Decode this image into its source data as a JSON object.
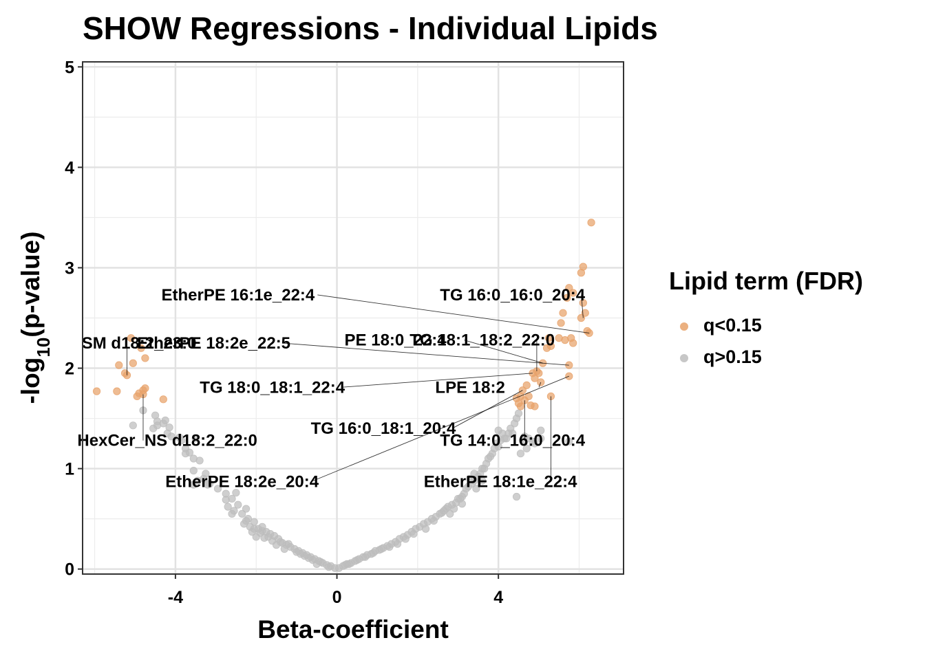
{
  "title": "SHOW Regressions - Individual Lipids",
  "legend": {
    "title": "Lipid term (FDR)",
    "items": [
      {
        "label": "q<0.15",
        "color": "#E8A26A"
      },
      {
        "label": "q>0.15",
        "color": "#BDBDBD"
      }
    ]
  },
  "chart_data": {
    "type": "scatter",
    "title": "SHOW Regressions - Individual Lipids",
    "xlabel": "Beta-coefficient",
    "ylabel_main": "-log",
    "ylabel_sub": "10",
    "ylabel_tail": "(p-value)",
    "xlim": [
      -6.3,
      7.1
    ],
    "ylim": [
      -0.05,
      5.05
    ],
    "x_ticks": [
      -4,
      0,
      4
    ],
    "x_tick_labels": [
      "-4",
      "0",
      "4"
    ],
    "y_ticks": [
      0,
      1,
      2,
      3,
      4,
      5
    ],
    "y_tick_labels": [
      "0",
      "1",
      "2",
      "3",
      "4",
      "5"
    ],
    "grid": true,
    "legend_position": "right",
    "series": [
      {
        "name": "q<0.15",
        "color": "#E8A26A",
        "points": [
          [
            6.3,
            3.45
          ],
          [
            6.1,
            3.01
          ],
          [
            6.05,
            2.95
          ],
          [
            5.75,
            2.8
          ],
          [
            5.85,
            2.75
          ],
          [
            5.7,
            2.7
          ],
          [
            6.1,
            2.65
          ],
          [
            6.15,
            2.55
          ],
          [
            5.6,
            2.55
          ],
          [
            6.05,
            2.5
          ],
          [
            5.55,
            2.45
          ],
          [
            6.2,
            2.37
          ],
          [
            6.25,
            2.35
          ],
          [
            5.8,
            2.3
          ],
          [
            5.5,
            2.3
          ],
          [
            5.65,
            2.28
          ],
          [
            5.85,
            2.25
          ],
          [
            5.25,
            2.3
          ],
          [
            5.3,
            2.22
          ],
          [
            5.2,
            2.2
          ],
          [
            5.1,
            2.05
          ],
          [
            5.75,
            2.03
          ],
          [
            4.95,
            1.97
          ],
          [
            5.0,
            1.95
          ],
          [
            4.85,
            1.95
          ],
          [
            5.75,
            1.92
          ],
          [
            4.9,
            1.9
          ],
          [
            5.05,
            1.86
          ],
          [
            4.7,
            1.83
          ],
          [
            4.6,
            1.78
          ],
          [
            4.55,
            1.72
          ],
          [
            4.75,
            1.72
          ],
          [
            4.45,
            1.7
          ],
          [
            4.65,
            1.68
          ],
          [
            4.5,
            1.65
          ],
          [
            4.8,
            1.63
          ],
          [
            4.55,
            1.62
          ],
          [
            4.9,
            1.62
          ],
          [
            5.3,
            1.72
          ],
          [
            -5.1,
            2.3
          ],
          [
            -4.85,
            2.2
          ],
          [
            -4.75,
            2.1
          ],
          [
            -5.05,
            2.05
          ],
          [
            -5.4,
            2.03
          ],
          [
            -5.25,
            1.95
          ],
          [
            -5.2,
            1.93
          ],
          [
            -4.75,
            1.8
          ],
          [
            -4.8,
            1.78
          ],
          [
            -4.9,
            1.75
          ],
          [
            -5.45,
            1.77
          ],
          [
            -5.95,
            1.77
          ],
          [
            -4.8,
            1.74
          ],
          [
            -4.95,
            1.72
          ],
          [
            -4.3,
            1.69
          ]
        ]
      },
      {
        "name": "q>0.15",
        "color": "#BDBDBD",
        "points": [
          [
            -4.8,
            1.58
          ],
          [
            -4.5,
            1.53
          ],
          [
            -4.45,
            1.47
          ],
          [
            -4.25,
            1.48
          ],
          [
            -4.3,
            1.45
          ],
          [
            -4.45,
            1.43
          ],
          [
            -4.15,
            1.41
          ],
          [
            -4.1,
            1.32
          ],
          [
            -4.2,
            1.35
          ],
          [
            -4.55,
            1.4
          ],
          [
            -5.05,
            1.43
          ],
          [
            -3.9,
            1.31
          ],
          [
            -3.85,
            1.28
          ],
          [
            -3.75,
            1.2
          ],
          [
            -3.5,
            1.3
          ],
          [
            -3.65,
            1.16
          ],
          [
            -3.55,
            1.1
          ],
          [
            -3.4,
            1.08
          ],
          [
            -3.55,
            0.98
          ],
          [
            -3.75,
            1.15
          ],
          [
            -3.45,
            0.88
          ],
          [
            -3.3,
            0.9
          ],
          [
            -3.15,
            0.85
          ],
          [
            -3.25,
            0.95
          ],
          [
            -3.55,
            0.84
          ],
          [
            -3.2,
            0.84
          ],
          [
            -2.95,
            0.8
          ],
          [
            -2.75,
            0.75
          ],
          [
            -2.5,
            0.76
          ],
          [
            -2.6,
            0.7
          ],
          [
            -2.75,
            0.69
          ],
          [
            -2.7,
            0.62
          ],
          [
            -2.45,
            0.64
          ],
          [
            -2.6,
            0.55
          ],
          [
            -2.35,
            0.55
          ],
          [
            -2.25,
            0.6
          ],
          [
            -2.2,
            0.5
          ],
          [
            -2.3,
            0.45
          ],
          [
            -2.15,
            0.42
          ],
          [
            -2.05,
            0.4
          ],
          [
            -1.95,
            0.4
          ],
          [
            -1.85,
            0.38
          ],
          [
            -1.75,
            0.37
          ],
          [
            -1.65,
            0.35
          ],
          [
            -1.55,
            0.33
          ],
          [
            -1.45,
            0.3
          ],
          [
            -1.35,
            0.26
          ],
          [
            -1.25,
            0.24
          ],
          [
            -1.15,
            0.22
          ],
          [
            -1.05,
            0.2
          ],
          [
            -0.95,
            0.18
          ],
          [
            -0.85,
            0.16
          ],
          [
            -0.75,
            0.14
          ],
          [
            -0.65,
            0.12
          ],
          [
            -0.55,
            0.1
          ],
          [
            -0.45,
            0.08
          ],
          [
            -0.35,
            0.06
          ],
          [
            -0.25,
            0.04
          ],
          [
            -0.15,
            0.03
          ],
          [
            -0.05,
            0.01
          ],
          [
            -1.9,
            0.36
          ],
          [
            -1.7,
            0.32
          ],
          [
            -1.6,
            0.28
          ],
          [
            -1.4,
            0.27
          ],
          [
            -1.2,
            0.25
          ],
          [
            -1.0,
            0.17
          ],
          [
            -0.8,
            0.13
          ],
          [
            -0.6,
            0.09
          ],
          [
            -0.4,
            0.07
          ],
          [
            -0.2,
            0.02
          ],
          [
            -2.1,
            0.37
          ],
          [
            -1.8,
            0.31
          ],
          [
            -2.05,
            0.47
          ],
          [
            -2.25,
            0.48
          ],
          [
            -1.5,
            0.24
          ],
          [
            -1.3,
            0.2
          ],
          [
            -0.9,
            0.15
          ],
          [
            -0.7,
            0.11
          ],
          [
            -0.5,
            0.05
          ],
          [
            -2.55,
            0.58
          ],
          [
            -2.0,
            0.32
          ],
          [
            -1.85,
            0.42
          ],
          [
            0.05,
            0.01
          ],
          [
            0.15,
            0.03
          ],
          [
            0.25,
            0.05
          ],
          [
            0.35,
            0.06
          ],
          [
            0.45,
            0.08
          ],
          [
            0.55,
            0.1
          ],
          [
            0.65,
            0.12
          ],
          [
            0.75,
            0.14
          ],
          [
            0.85,
            0.15
          ],
          [
            0.95,
            0.18
          ],
          [
            1.05,
            0.19
          ],
          [
            1.15,
            0.21
          ],
          [
            1.25,
            0.23
          ],
          [
            1.35,
            0.25
          ],
          [
            1.45,
            0.27
          ],
          [
            1.55,
            0.3
          ],
          [
            1.65,
            0.32
          ],
          [
            1.75,
            0.34
          ],
          [
            1.85,
            0.37
          ],
          [
            1.95,
            0.4
          ],
          [
            2.05,
            0.42
          ],
          [
            2.15,
            0.45
          ],
          [
            2.25,
            0.47
          ],
          [
            2.35,
            0.5
          ],
          [
            2.45,
            0.52
          ],
          [
            2.55,
            0.55
          ],
          [
            2.6,
            0.56
          ],
          [
            2.7,
            0.6
          ],
          [
            2.75,
            0.62
          ],
          [
            2.85,
            0.64
          ],
          [
            2.95,
            0.66
          ],
          [
            3.05,
            0.7
          ],
          [
            3.1,
            0.72
          ],
          [
            3.15,
            0.75
          ],
          [
            3.2,
            0.8
          ],
          [
            3.25,
            0.82
          ],
          [
            3.35,
            0.85
          ],
          [
            3.4,
            0.88
          ],
          [
            3.5,
            0.92
          ],
          [
            3.55,
            0.95
          ],
          [
            3.65,
            1.0
          ],
          [
            3.7,
            1.05
          ],
          [
            3.75,
            1.1
          ],
          [
            3.85,
            1.15
          ],
          [
            3.9,
            1.2
          ],
          [
            3.95,
            1.25
          ],
          [
            4.05,
            1.28
          ],
          [
            4.15,
            1.3
          ],
          [
            4.25,
            1.35
          ],
          [
            4.3,
            1.4
          ],
          [
            4.4,
            1.45
          ],
          [
            4.45,
            1.5
          ],
          [
            4.5,
            1.55
          ],
          [
            3.0,
            0.7
          ],
          [
            3.3,
            0.9
          ],
          [
            3.6,
            1.0
          ],
          [
            3.8,
            1.12
          ],
          [
            4.0,
            1.22
          ],
          [
            4.2,
            1.3
          ],
          [
            2.9,
            0.6
          ],
          [
            3.1,
            0.65
          ],
          [
            2.8,
            0.55
          ],
          [
            2.4,
            0.48
          ],
          [
            2.2,
            0.4
          ],
          [
            1.9,
            0.35
          ],
          [
            1.7,
            0.3
          ],
          [
            1.5,
            0.25
          ],
          [
            1.3,
            0.22
          ],
          [
            1.1,
            0.2
          ],
          [
            0.9,
            0.16
          ],
          [
            0.7,
            0.12
          ],
          [
            0.5,
            0.09
          ],
          [
            0.3,
            0.05
          ],
          [
            0.2,
            0.04
          ],
          [
            3.45,
            0.8
          ],
          [
            3.6,
            0.88
          ],
          [
            3.4,
            0.95
          ],
          [
            2.65,
            0.58
          ],
          [
            4.6,
            1.28
          ],
          [
            4.65,
            1.32
          ],
          [
            4.85,
            1.27
          ],
          [
            5.05,
            1.3
          ],
          [
            5.05,
            1.38
          ],
          [
            5.75,
            1.27
          ],
          [
            4.55,
            1.15
          ],
          [
            4.45,
            0.72
          ],
          [
            4.7,
            1.2
          ],
          [
            4.35,
            1.35
          ],
          [
            4.9,
            1.25
          ],
          [
            4.75,
            1.3
          ],
          [
            4.1,
            1.35
          ],
          [
            4.0,
            1.38
          ]
        ]
      }
    ],
    "annotations": [
      {
        "text": "EtherPE 16:1e_22:4"
      },
      {
        "text": "TG 16:0_16:0_20:4"
      },
      {
        "text": "SM d18:2_23:0"
      },
      {
        "text": "EtherPE 18:2e_22:5"
      },
      {
        "text": "PE 18:0_22:4"
      },
      {
        "text": "TG 18:1_18:2_22:0"
      },
      {
        "text": "TG 18:0_18:1_22:4"
      },
      {
        "text": "LPE 18:2"
      },
      {
        "text": "HexCer_NS d18:2_22:0"
      },
      {
        "text": "TG 16:0_18:1_20:4"
      },
      {
        "text": "TG 14:0_16:0_20:4"
      },
      {
        "text": "EtherPE 18:2e_20:4"
      },
      {
        "text": "EtherPE 18:1e_22:4"
      }
    ]
  }
}
